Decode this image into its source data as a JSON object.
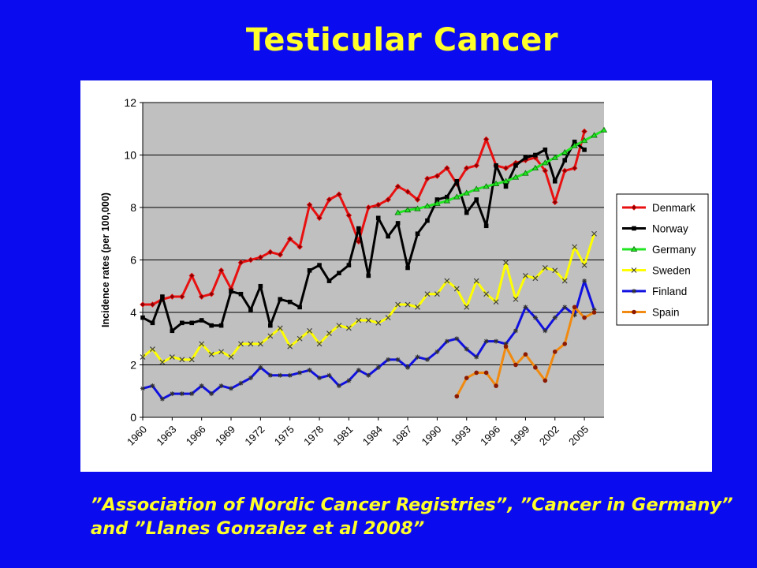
{
  "title": "Testicular Cancer",
  "caption": {
    "line1": "”Association of Nordic Cancer Registries”, ”Cancer in Germany”",
    "line2": "and ”Llanes Gonzalez et al 2008”"
  },
  "chart_data": {
    "type": "line",
    "title": "",
    "xlabel": "",
    "ylabel": "Incidence rates (per 100,000)",
    "xlim": [
      1960,
      2007
    ],
    "ylim": [
      0,
      12
    ],
    "y_ticks": [
      0,
      2,
      4,
      6,
      8,
      10,
      12
    ],
    "x_tick_labels": [
      "1960",
      "1963",
      "1966",
      "1969",
      "1972",
      "1975",
      "1978",
      "1981",
      "1984",
      "1987",
      "1990",
      "1993",
      "1996",
      "1999",
      "2002",
      "2005"
    ],
    "grid": true,
    "plot_background": "#c0c0c0",
    "legend_position": "right",
    "series": [
      {
        "name": "Denmark",
        "color": "#e81010",
        "marker": "diamond",
        "start_year": 1960,
        "values": [
          4.3,
          4.3,
          4.5,
          4.6,
          4.6,
          5.4,
          4.6,
          4.7,
          5.6,
          4.9,
          5.9,
          6.0,
          6.1,
          6.3,
          6.2,
          6.8,
          6.5,
          8.1,
          7.6,
          8.3,
          8.5,
          7.7,
          6.7,
          8.0,
          8.1,
          8.3,
          8.8,
          8.6,
          8.3,
          9.1,
          9.2,
          9.5,
          8.9,
          9.5,
          9.6,
          10.6,
          9.6,
          9.5,
          9.7,
          9.8,
          9.9,
          9.4,
          8.2,
          9.4,
          9.5,
          10.9
        ]
      },
      {
        "name": "Norway",
        "color": "#000000",
        "marker": "square",
        "start_year": 1960,
        "values": [
          3.8,
          3.6,
          4.6,
          3.3,
          3.6,
          3.6,
          3.7,
          3.5,
          3.5,
          4.8,
          4.7,
          4.1,
          5.0,
          3.5,
          4.5,
          4.4,
          4.2,
          5.6,
          5.8,
          5.2,
          5.5,
          5.8,
          7.2,
          5.4,
          7.6,
          6.9,
          7.4,
          5.7,
          7.0,
          7.5,
          8.3,
          8.4,
          9.0,
          7.8,
          8.3,
          7.3,
          9.6,
          8.8,
          9.6,
          9.9,
          10.0,
          10.2,
          9.0,
          9.8,
          10.5,
          10.2
        ]
      },
      {
        "name": "Germany",
        "color": "#22e622",
        "marker": "triangle",
        "start_year": 1986,
        "values": [
          7.8,
          7.9,
          7.95,
          8.05,
          8.15,
          8.25,
          8.4,
          8.55,
          8.7,
          8.8,
          8.9,
          9.0,
          9.15,
          9.3,
          9.5,
          9.7,
          9.9,
          10.1,
          10.35,
          10.55,
          10.75,
          10.95
        ]
      },
      {
        "name": "Sweden",
        "color": "#ffff00",
        "marker": "x",
        "start_year": 1960,
        "values": [
          2.3,
          2.6,
          2.1,
          2.3,
          2.2,
          2.2,
          2.8,
          2.4,
          2.5,
          2.3,
          2.8,
          2.8,
          2.8,
          3.1,
          3.4,
          2.7,
          3.0,
          3.3,
          2.8,
          3.2,
          3.5,
          3.4,
          3.7,
          3.7,
          3.6,
          3.8,
          4.3,
          4.3,
          4.2,
          4.7,
          4.7,
          5.2,
          4.9,
          4.2,
          5.2,
          4.7,
          4.4,
          5.9,
          4.5,
          5.4,
          5.3,
          5.7,
          5.6,
          5.2,
          6.5,
          5.8,
          7.0
        ]
      },
      {
        "name": "Finland",
        "color": "#1010e0",
        "marker": "star",
        "start_year": 1960,
        "values": [
          1.1,
          1.2,
          0.7,
          0.9,
          0.9,
          0.9,
          1.2,
          0.9,
          1.2,
          1.1,
          1.3,
          1.5,
          1.9,
          1.6,
          1.6,
          1.6,
          1.7,
          1.8,
          1.5,
          1.6,
          1.2,
          1.4,
          1.8,
          1.6,
          1.9,
          2.2,
          2.2,
          1.9,
          2.3,
          2.2,
          2.5,
          2.9,
          3.0,
          2.6,
          2.3,
          2.9,
          2.9,
          2.8,
          3.3,
          4.2,
          3.8,
          3.3,
          3.8,
          4.2,
          3.9,
          5.2,
          4.1
        ]
      },
      {
        "name": "Spain",
        "color": "#f08a10",
        "marker": "circle",
        "start_year": 1992,
        "values": [
          0.8,
          1.5,
          1.7,
          1.7,
          1.2,
          2.7,
          2.0,
          2.4,
          1.9,
          1.4,
          2.5,
          2.8,
          4.2,
          3.8,
          4.0
        ]
      }
    ]
  }
}
